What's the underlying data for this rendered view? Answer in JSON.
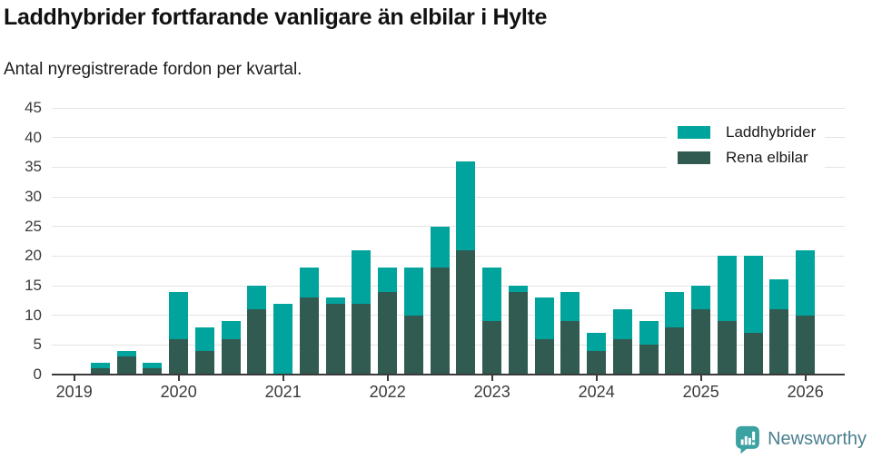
{
  "title": "Laddhybrider fortfarande vanligare än elbilar i Hylte",
  "subtitle": "Antal nyregistrerade fordon per kvartal.",
  "legend": [
    {
      "label": "Laddhybrider",
      "color": "#00a49c"
    },
    {
      "label": "Rena elbilar",
      "color": "#315a50"
    }
  ],
  "chart_data": {
    "type": "bar",
    "stacked": true,
    "title": "Laddhybrider fortfarande vanligare än elbilar i Hylte",
    "subtitle": "Antal nyregistrerade fordon per kvartal.",
    "x": [
      "2019 Q1",
      "2019 Q2",
      "2019 Q3",
      "2019 Q4",
      "2020 Q1",
      "2020 Q2",
      "2020 Q3",
      "2020 Q4",
      "2021 Q1",
      "2021 Q2",
      "2021 Q3",
      "2021 Q4",
      "2022 Q1",
      "2022 Q2",
      "2022 Q3",
      "2022 Q4",
      "2023 Q1",
      "2023 Q2",
      "2023 Q3",
      "2023 Q4",
      "2024 Q1",
      "2024 Q2",
      "2024 Q3",
      "2024 Q4",
      "2025 Q1",
      "2025 Q2",
      "2025 Q3",
      "2025 Q4",
      "2026 Q1"
    ],
    "series": [
      {
        "name": "Rena elbilar",
        "color": "#315a50",
        "values": [
          0,
          1,
          3,
          1,
          6,
          4,
          6,
          11,
          0,
          13,
          12,
          12,
          14,
          10,
          18,
          21,
          9,
          14,
          6,
          9,
          4,
          6,
          5,
          8,
          11,
          9,
          7,
          11,
          10
        ]
      },
      {
        "name": "Laddhybrider",
        "color": "#00a49c",
        "values": [
          0,
          1,
          1,
          1,
          8,
          4,
          3,
          4,
          12,
          5,
          1,
          9,
          4,
          8,
          7,
          15,
          9,
          1,
          7,
          5,
          3,
          5,
          4,
          6,
          4,
          11,
          13,
          5,
          11
        ]
      }
    ],
    "totals": [
      0,
      2,
      4,
      2,
      14,
      8,
      9,
      15,
      12,
      18,
      13,
      21,
      18,
      18,
      25,
      36,
      18,
      15,
      13,
      14,
      7,
      11,
      9,
      14,
      15,
      20,
      20,
      16,
      21
    ],
    "ylim": [
      0,
      45
    ],
    "yticks": [
      0,
      5,
      10,
      15,
      20,
      25,
      30,
      35,
      40,
      45
    ],
    "xticks": [
      "2019",
      "2020",
      "2021",
      "2022",
      "2023",
      "2024",
      "2025",
      "2026"
    ],
    "grid": true,
    "legend_position": "top-right"
  },
  "colors": {
    "laddhybrider": "#00a49c",
    "rena_elbilar": "#315a50",
    "gridline": "#e4e4e4",
    "axis": "#3a3a3a",
    "logo_teal": "#3ba1a1",
    "logo_text": "#4a8090"
  },
  "footer": {
    "brand": "Newsworthy"
  }
}
